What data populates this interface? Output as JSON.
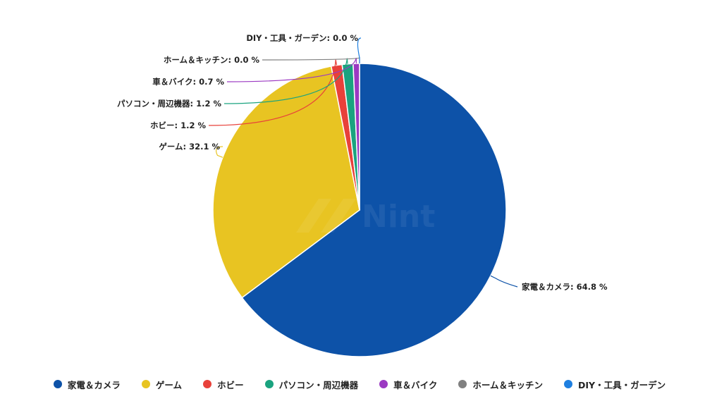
{
  "chart_data": {
    "type": "pie",
    "title": "",
    "watermark": "Nint",
    "label_suffix": " %",
    "series": [
      {
        "name": "家電＆カメラ",
        "value": 64.8,
        "color": "#0d52a8"
      },
      {
        "name": "ゲーム",
        "value": 32.1,
        "color": "#e8c422"
      },
      {
        "name": "ホビー",
        "value": 1.2,
        "color": "#e8413a"
      },
      {
        "name": "パソコン・周辺機器",
        "value": 1.2,
        "color": "#1aa37f"
      },
      {
        "name": "車＆バイク",
        "value": 0.7,
        "color": "#9b39c2"
      },
      {
        "name": "ホーム＆キッチン",
        "value": 0.0,
        "color": "#808080"
      },
      {
        "name": "DIY・工具・ガーデン",
        "value": 0.0,
        "color": "#1e7fe0"
      }
    ],
    "slice_labels": [
      "家電＆カメラ: 64.8 %",
      "ゲーム: 32.1 %",
      "ホビー: 1.2 %",
      "パソコン・周辺機器: 1.2 %",
      "車＆バイク: 0.7 %",
      "ホーム＆キッチン: 0.0 %",
      "DIY・工具・ガーデン: 0.0 %"
    ],
    "legend": {
      "position": "bottom",
      "items": [
        "家電＆カメラ",
        "ゲーム",
        "ホビー",
        "パソコン・周辺機器",
        "車＆バイク",
        "ホーム＆キッチン",
        "DIY・工具・ガーデン"
      ]
    }
  }
}
